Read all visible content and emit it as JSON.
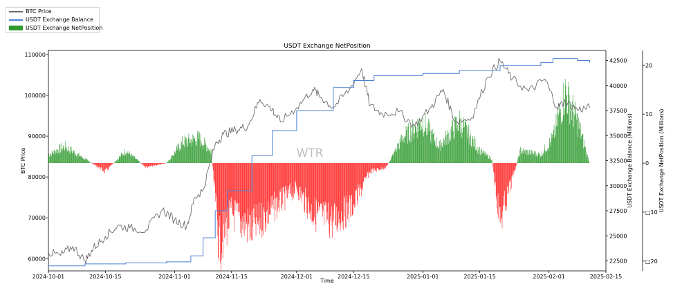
{
  "chart_data": {
    "type": "line",
    "title": "USDT Exchange NetPosition",
    "xlabel": "Time",
    "ylabel_left": "BTC Price",
    "ylabel_right1": "USDT Exchange Balance (Millions)",
    "ylabel_right2": "USDT Exchange NetPosition (Millions)",
    "watermark": "WTR",
    "legend": {
      "placement": "top-left",
      "entries": [
        "BTC Price",
        "USDT Exchange Balance",
        "USDT Exchange NetPosition"
      ]
    },
    "x_axis": {
      "range": [
        "2024-10-01",
        "2025-02-15"
      ],
      "ticks": [
        "2024-10-01",
        "2024-10-15",
        "2024-11-01",
        "2024-11-15",
        "2024-12-01",
        "2024-12-15",
        "2025-01-01",
        "2025-01-15",
        "2025-02-01",
        "2025-02-15"
      ]
    },
    "y_left": {
      "range": [
        57000,
        111000
      ],
      "ticks": [
        60000,
        70000,
        80000,
        90000,
        100000,
        110000
      ]
    },
    "y_right1": {
      "range": [
        21500,
        43500
      ],
      "ticks": [
        22500,
        25000,
        27500,
        30000,
        32500,
        35000,
        37500,
        40000,
        42500
      ]
    },
    "y_right2": {
      "range": [
        -22,
        23
      ],
      "ticks": [
        "20",
        "10",
        "0",
        "□10",
        "□20"
      ],
      "tick_values": [
        20,
        10,
        0,
        -10,
        -20
      ]
    },
    "colors": {
      "btc": "#6b6b6b",
      "balance": "#4a7fd4",
      "net_pos": "#2e9a2e",
      "net_neg": "#ff2020"
    },
    "series": [
      {
        "name": "BTC Price",
        "x": [
          "2024-10-01",
          "2024-10-04",
          "2024-10-07",
          "2024-10-10",
          "2024-10-12",
          "2024-10-15",
          "2024-10-18",
          "2024-10-21",
          "2024-10-25",
          "2024-10-29",
          "2024-11-01",
          "2024-11-04",
          "2024-11-06",
          "2024-11-08",
          "2024-11-11",
          "2024-11-13",
          "2024-11-16",
          "2024-11-19",
          "2024-11-22",
          "2024-11-25",
          "2024-11-27",
          "2024-12-01",
          "2024-12-05",
          "2024-12-07",
          "2024-12-10",
          "2024-12-14",
          "2024-12-17",
          "2024-12-19",
          "2024-12-22",
          "2024-12-26",
          "2024-12-30",
          "2025-01-03",
          "2025-01-06",
          "2025-01-09",
          "2025-01-13",
          "2025-01-17",
          "2025-01-20",
          "2025-01-23",
          "2025-01-27",
          "2025-01-31",
          "2025-02-03",
          "2025-02-05",
          "2025-02-08",
          "2025-02-11"
        ],
        "values": [
          61500,
          60800,
          63000,
          59500,
          62500,
          65500,
          68000,
          67500,
          67000,
          72000,
          69500,
          68000,
          75000,
          76800,
          88000,
          90500,
          91500,
          92500,
          99000,
          96500,
          93500,
          97000,
          101500,
          99500,
          97000,
          101500,
          106500,
          97500,
          95500,
          96000,
          92500,
          97000,
          101500,
          93500,
          94500,
          104500,
          108500,
          104000,
          101000,
          104000,
          97000,
          98500,
          96500,
          97000
        ]
      },
      {
        "name": "USDT Exchange Balance",
        "x": [
          "2024-10-01",
          "2024-10-10",
          "2024-10-20",
          "2024-10-30",
          "2024-11-05",
          "2024-11-08",
          "2024-11-11",
          "2024-11-14",
          "2024-11-20",
          "2024-11-25",
          "2024-12-01",
          "2024-12-10",
          "2024-12-15",
          "2024-12-20",
          "2025-01-01",
          "2025-01-10",
          "2025-01-20",
          "2025-01-30",
          "2025-02-02",
          "2025-02-08",
          "2025-02-11"
        ],
        "values": [
          22000,
          22200,
          22300,
          22400,
          23000,
          24800,
          27500,
          29500,
          33000,
          35500,
          37500,
          39800,
          40500,
          41000,
          41200,
          41500,
          42000,
          42300,
          42700,
          42500,
          42300
        ]
      },
      {
        "name": "USDT Exchange NetPosition",
        "x": [
          "2024-10-01",
          "2024-10-05",
          "2024-10-10",
          "2024-10-15",
          "2024-10-20",
          "2024-10-25",
          "2024-10-30",
          "2024-11-03",
          "2024-11-07",
          "2024-11-10",
          "2024-11-12",
          "2024-11-15",
          "2024-11-20",
          "2024-11-25",
          "2024-12-01",
          "2024-12-05",
          "2024-12-10",
          "2024-12-15",
          "2024-12-19",
          "2024-12-23",
          "2024-12-27",
          "2025-01-01",
          "2025-01-05",
          "2025-01-10",
          "2025-01-15",
          "2025-01-18",
          "2025-01-20",
          "2025-01-25",
          "2025-01-30",
          "2025-02-02",
          "2025-02-05",
          "2025-02-08",
          "2025-02-11"
        ],
        "values": [
          2,
          4,
          1,
          -2,
          3,
          -1,
          0,
          5,
          6,
          3,
          -20,
          -12,
          -16,
          -11,
          -6,
          -12,
          -14,
          -10,
          -2,
          -1,
          6,
          10,
          4,
          10,
          3,
          1,
          -14,
          3,
          2,
          6,
          17,
          10,
          0
        ]
      }
    ]
  }
}
